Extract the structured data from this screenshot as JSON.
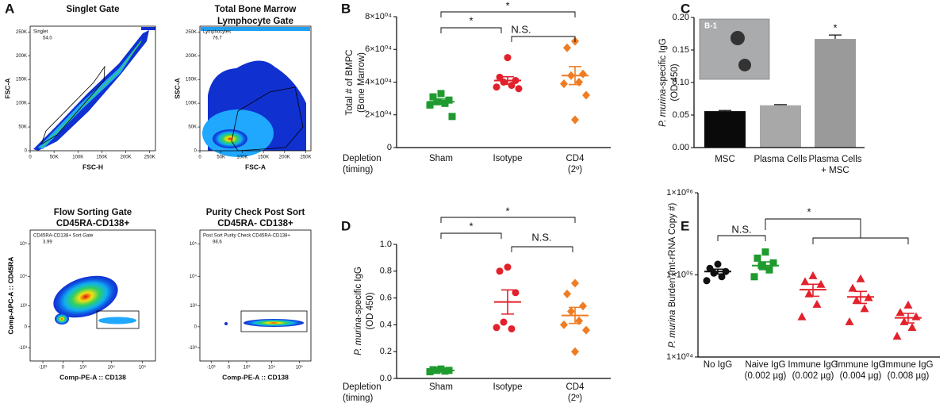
{
  "figure": {
    "A": {
      "label": "A",
      "plots": [
        {
          "title": [
            "Singlet Gate"
          ],
          "gate": "Singlet",
          "gate_value": "54.0",
          "xlabel": "FSC-H",
          "ylabel": "FSC-A",
          "scale": "linear",
          "xlim": [
            0,
            262144
          ],
          "ylim": [
            0,
            262144
          ],
          "xticks": [
            0,
            {
              "value": 50000,
              "label": "50K"
            },
            {
              "value": 100000,
              "label": "100K"
            },
            {
              "value": 150000,
              "label": "150K"
            },
            {
              "value": 200000,
              "label": "200K"
            },
            {
              "value": 250000,
              "label": "250K"
            }
          ],
          "yticks": [
            0,
            {
              "value": 50000,
              "label": "50K"
            },
            {
              "value": 100000,
              "label": "100K"
            },
            {
              "value": 150000,
              "label": "150K"
            },
            {
              "value": 200000,
              "label": "200K"
            },
            {
              "value": 250000,
              "label": "250K"
            }
          ]
        },
        {
          "title": [
            "Total Bone Marrow",
            "Lymphocyte Gate"
          ],
          "gate": "Lymphocytes",
          "gate_value": "76.7",
          "xlabel": "FSC-A",
          "ylabel": "SSC-A",
          "scale": "linear",
          "xlim": [
            0,
            262144
          ],
          "ylim": [
            0,
            262144
          ],
          "xticks": [
            0,
            {
              "value": 50000,
              "label": "50K"
            },
            {
              "value": 100000,
              "label": "100K"
            },
            {
              "value": 150000,
              "label": "150K"
            },
            {
              "value": 200000,
              "label": "200K"
            },
            {
              "value": 250000,
              "label": "250K"
            }
          ],
          "yticks": [
            0,
            {
              "value": 50000,
              "label": "50K"
            },
            {
              "value": 100000,
              "label": "100K"
            },
            {
              "value": 150000,
              "label": "150K"
            },
            {
              "value": 200000,
              "label": "200K"
            },
            {
              "value": 250000,
              "label": "250K"
            }
          ]
        },
        {
          "title": [
            "Flow Sorting Gate",
            "CD45RA-CD138+"
          ],
          "gate": "CD45RA-CD138+ Sort Gate",
          "gate_value": "3.99",
          "xlabel": "Comp-PE-A :: CD138",
          "ylabel": "Comp-APC-A :: CD45RA",
          "scale": "biexponential",
          "xlim": [
            -3000,
            262144
          ],
          "ylim": [
            -3000,
            262144
          ],
          "xticks": [
            {
              "value": -1000,
              "label": "-10³"
            },
            0,
            {
              "value": 1000,
              "label": "10³"
            },
            {
              "value": 10000,
              "label": "10⁴"
            },
            {
              "value": 100000,
              "label": "10⁵"
            }
          ],
          "yticks": [
            {
              "value": -1000,
              "label": "-10³"
            },
            0,
            {
              "value": 1000,
              "label": "10³"
            },
            {
              "value": 10000,
              "label": "10⁴"
            },
            {
              "value": 100000,
              "label": "10⁵"
            }
          ]
        },
        {
          "title": [
            "Purity Check Post Sort",
            "CD45RA- CD138+"
          ],
          "gate": "Post Sort Purity Check CD45RA-CD138+",
          "gate_value": "98.6",
          "xlabel": "Comp-PE-A :: CD138",
          "ylabel": "Comp-APC-A :: CD45RA",
          "scale": "biexponential",
          "xlim": [
            -3000,
            262144
          ],
          "ylim": [
            -3000,
            262144
          ],
          "xticks": [
            {
              "value": -1000,
              "label": "-10³"
            },
            0,
            {
              "value": 1000,
              "label": "10³"
            },
            {
              "value": 10000,
              "label": "10⁴"
            },
            {
              "value": 100000,
              "label": "10⁵"
            }
          ],
          "yticks": [
            {
              "value": -1000,
              "label": "-10³"
            },
            0,
            {
              "value": 1000,
              "label": "10³"
            },
            {
              "value": 10000,
              "label": "10⁴"
            },
            {
              "value": 100000,
              "label": "10⁵"
            }
          ]
        }
      ]
    },
    "B": {
      "label": "B",
      "type": "dotplot",
      "row_label": [
        "Depletion",
        "(timing)"
      ],
      "ylabel": [
        "Total # of BMPC",
        "(Bone Marrow)"
      ],
      "yscale": "linear",
      "ylim": [
        0,
        80000
      ],
      "yticks": [
        0,
        {
          "value": 20000,
          "label": "2×10⁰⁴"
        },
        {
          "value": 40000,
          "label": "4×10⁰⁴"
        },
        {
          "value": 60000,
          "label": "6×10⁰⁴"
        },
        {
          "value": 80000,
          "label": "8×10⁰⁴"
        }
      ],
      "groups": [
        {
          "name": [
            "Sham"
          ],
          "color": "#1f9a2f",
          "marker": "square",
          "values": [
            33000,
            31000,
            29000,
            28000,
            27000,
            26000,
            19000
          ],
          "mean": 28000,
          "sem": 1700
        },
        {
          "name": [
            "Isotype"
          ],
          "color": "#e3212b",
          "marker": "circle",
          "values": [
            55000,
            43000,
            41000,
            40000,
            38000,
            37000,
            36000
          ],
          "mean": 41000,
          "sem": 2300
        },
        {
          "name": [
            "CD4",
            "(2º)"
          ],
          "color": "#f07c22",
          "marker": "diamond",
          "values": [
            65000,
            61000,
            45000,
            44000,
            40000,
            39000,
            32000,
            17000
          ],
          "mean": 44000,
          "sem": 5500
        }
      ],
      "annotations": [
        "*",
        "*",
        "N.S."
      ]
    },
    "C": {
      "label": "C",
      "type": "bar",
      "ylabel_italic": "P. murina",
      "ylabel": "-specific IgG",
      "ylabel2": "(OD 450)",
      "ylim": [
        0,
        0.2
      ],
      "yticks": [
        {
          "value": 0,
          "label": "0.00"
        },
        0.05,
        {
          "value": 0.1,
          "label": "0.10"
        },
        0.15,
        {
          "value": 0.2,
          "label": "0.20"
        }
      ],
      "categories": [
        [
          "MSC"
        ],
        [
          "Plasma Cells"
        ],
        [
          "Plasma Cells",
          "+ MSC"
        ]
      ],
      "values": [
        0.056,
        0.065,
        0.167
      ],
      "errors": [
        0.001,
        0.001,
        0.006
      ],
      "colors": [
        "#0a0a0a",
        "#a8a8a9",
        "#9a9a9b"
      ],
      "annotations": [
        "*"
      ],
      "inset_label": "B-1"
    },
    "D": {
      "label": "D",
      "type": "dotplot",
      "row_label": [
        "Depletion",
        "(timing)"
      ],
      "ylabel_italic": "P. murina",
      "ylabel": "-specific IgG",
      "ylabel2": "(OD 450)",
      "yscale": "linear",
      "ylim": [
        0,
        1
      ],
      "yticks": [
        {
          "value": 0,
          "label": "0.0"
        },
        0.2,
        0.4,
        0.6,
        0.8,
        {
          "value": 1,
          "label": "1.0"
        }
      ],
      "groups": [
        {
          "name": [
            "Sham"
          ],
          "color": "#1f9a2f",
          "marker": "square",
          "values": [
            0.07,
            0.065,
            0.06,
            0.06,
            0.055,
            0.05
          ],
          "mean": 0.06,
          "sem": 0.003
        },
        {
          "name": [
            "Isotype"
          ],
          "color": "#e3212b",
          "marker": "circle",
          "values": [
            0.83,
            0.8,
            0.64,
            0.42,
            0.37,
            0.38
          ],
          "mean": 0.57,
          "sem": 0.09
        },
        {
          "name": [
            "CD4",
            "(2º)"
          ],
          "color": "#f07c22",
          "marker": "diamond",
          "values": [
            0.71,
            0.63,
            0.54,
            0.5,
            0.43,
            0.4,
            0.36,
            0.2
          ],
          "mean": 0.47,
          "sem": 0.06
        }
      ],
      "annotations": [
        "*",
        "*",
        "N.S."
      ]
    },
    "E": {
      "label": "E",
      "type": "dotplot",
      "ylabel_italic": "P. murina",
      "ylabel": " Burden (mt-rRNA Copy #)",
      "yscale": "log",
      "ylim": [
        10000,
        1000000
      ],
      "yticks": [
        {
          "value": 10000,
          "label": "1×10⁰⁴"
        },
        {
          "value": 100000,
          "label": "1×10⁰⁵"
        },
        {
          "value": 1000000,
          "label": "1×10⁰⁶"
        }
      ],
      "groups": [
        {
          "name": [
            "No IgG"
          ],
          "color": "#111111",
          "marker": "circle",
          "values": [
            135000,
            120000,
            110000,
            105000,
            95000,
            85000
          ],
          "mean": 110000,
          "sem": 7500
        },
        {
          "name": [
            "Naive  IgG",
            "(0.002 µg)"
          ],
          "color": "#1f9a2f",
          "marker": "square",
          "values": [
            190000,
            160000,
            140000,
            130000,
            115000,
            95000
          ],
          "mean": 130000,
          "sem": 14000
        },
        {
          "name": [
            "Immune  IgG",
            "(0.002 µg)"
          ],
          "color": "#e3212b",
          "marker": "triangle",
          "values": [
            98000,
            83000,
            77000,
            59000,
            44000,
            31000
          ],
          "mean": 66000,
          "sem": 11000
        },
        {
          "name": [
            "Immune  IgG",
            "(0.004 µg)"
          ],
          "color": "#e3212b",
          "marker": "triangle",
          "values": [
            90000,
            69000,
            53000,
            49000,
            39000,
            27000
          ],
          "mean": 54000,
          "sem": 9000
        },
        {
          "name": [
            "Immune  IgG",
            "(0.008 µg)"
          ],
          "color": "#e3212b",
          "marker": "triangle",
          "values": [
            43000,
            35000,
            31000,
            27000,
            23000,
            18000
          ],
          "mean": 30000,
          "sem": 4000
        }
      ],
      "annotations": [
        "N.S.",
        "*"
      ]
    }
  }
}
